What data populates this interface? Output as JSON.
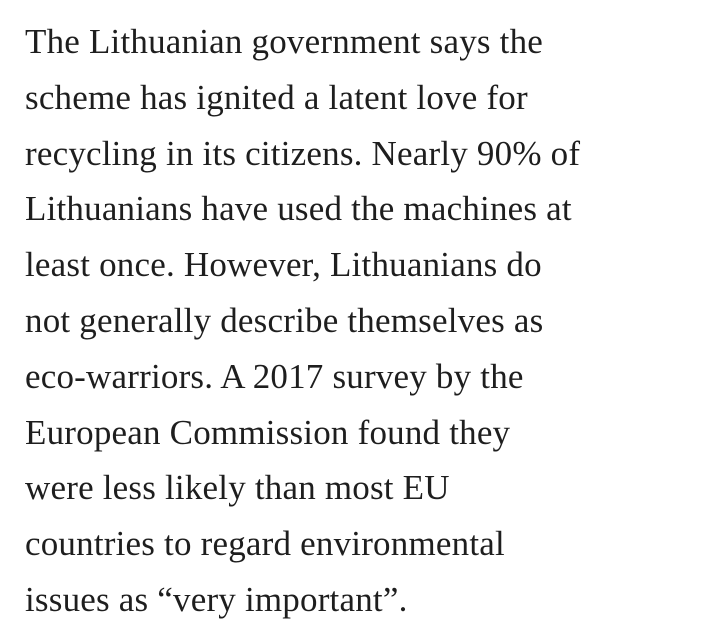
{
  "paragraph": {
    "lines": [
      "The Lithuanian government says the",
      "scheme has ignited a latent love for",
      "recycling in its citizens. Nearly 90% of",
      "Lithuanians have used the machines at",
      "least once. However, Lithuanians do",
      "not generally describe themselves as",
      "eco-warriors. A 2017 survey by the",
      "European Commission found they",
      "were less likely than most EU",
      "countries to regard environmental",
      "issues as “very important”."
    ]
  }
}
